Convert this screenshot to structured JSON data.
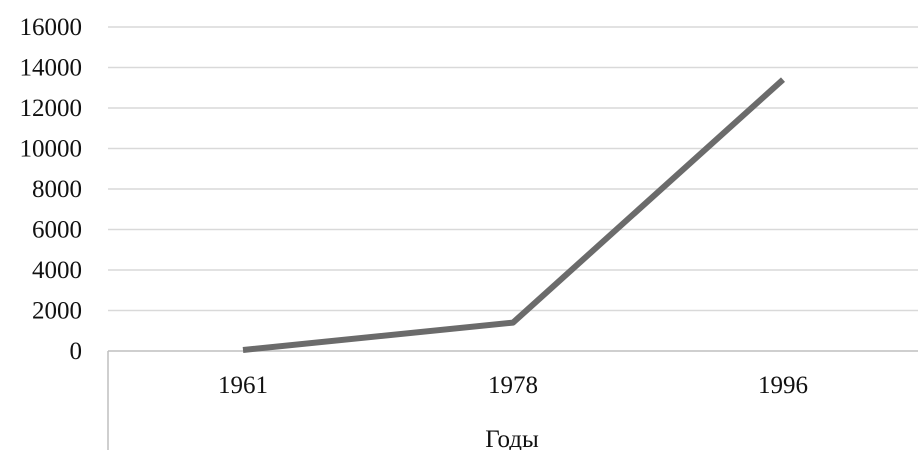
{
  "chart_data": {
    "type": "line",
    "categories": [
      "1961",
      "1978",
      "1996"
    ],
    "series": [
      {
        "values": [
          50,
          1400,
          13400
        ]
      }
    ],
    "y_ticks": [
      "0",
      "2000",
      "4000",
      "6000",
      "8000",
      "10000",
      "12000",
      "14000",
      "16000"
    ],
    "xlabel": "Годы",
    "ylabel": "",
    "ylim": [
      0,
      16000
    ],
    "grid": true,
    "legend": "none",
    "colors": {
      "line": "#6b6b6b",
      "grid": "#d9d9d9",
      "axis": "#bfbfbf",
      "text": "#111111"
    }
  }
}
